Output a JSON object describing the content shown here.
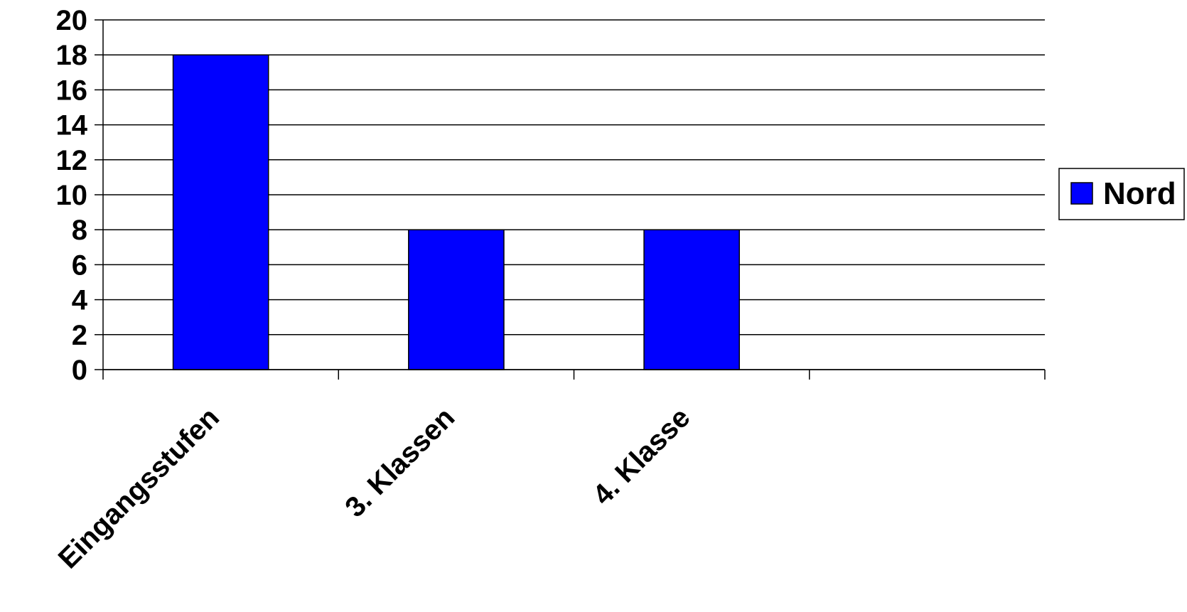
{
  "chart_data": {
    "type": "bar",
    "categories": [
      "Eingangsstufen",
      "3. Klassen",
      "4. Klasse",
      ""
    ],
    "series": [
      {
        "name": "Nord",
        "values": [
          18,
          8,
          8,
          null
        ],
        "color": "#0000ff"
      }
    ],
    "title": "",
    "xlabel": "",
    "ylabel": "",
    "ylim": [
      0,
      20
    ],
    "yticks": [
      "0",
      "2",
      "4",
      "6",
      "8",
      "10",
      "12",
      "14",
      "16",
      "18",
      "20"
    ],
    "grid": true,
    "legend_position": "right",
    "x_label_rotation": "-45"
  }
}
